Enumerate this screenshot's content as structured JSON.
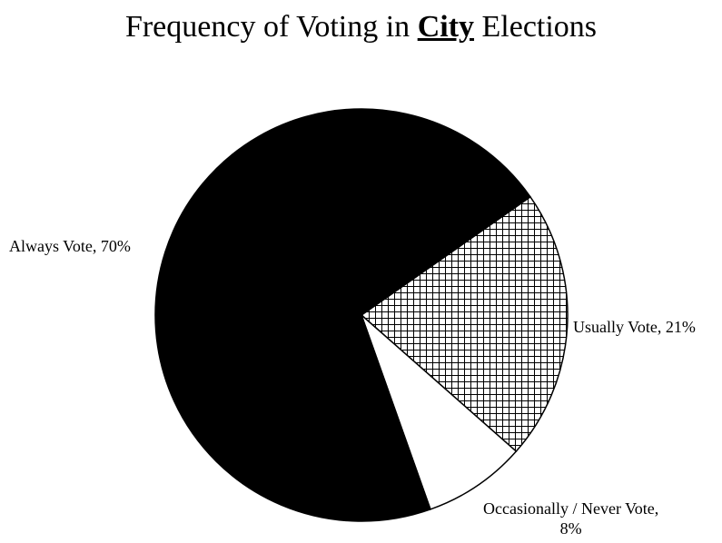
{
  "chart_data": {
    "type": "pie",
    "title": {
      "prefix": "Frequency of Voting in ",
      "emphasis": "City",
      "suffix": " Elections"
    },
    "slices": [
      {
        "label": "Always Vote, 70%",
        "value": 70,
        "fill": "#000000",
        "pattern": "solid"
      },
      {
        "label": "Usually Vote, 21%",
        "value": 21,
        "fill": "#ffffff",
        "pattern": "grid"
      },
      {
        "label_line1": "Occasionally / Never Vote,",
        "label_line2": "8%",
        "value": 8,
        "fill": "#ffffff",
        "pattern": "none"
      }
    ],
    "start_angle_deg": 35,
    "legend": "none"
  }
}
